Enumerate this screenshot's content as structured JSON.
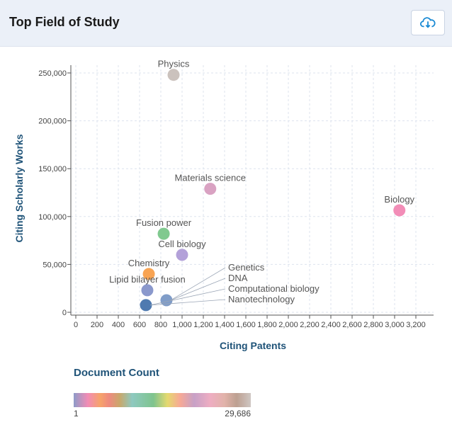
{
  "header": {
    "title": "Top Field of Study",
    "download_icon": "cloud-download-icon"
  },
  "chart_data": {
    "type": "scatter",
    "xlabel": "Citing Patents",
    "ylabel": "Citing Scholarly Works",
    "xlim": [
      -50,
      3350
    ],
    "ylim": [
      -5000,
      255000
    ],
    "xticks": [
      0,
      200,
      400,
      600,
      800,
      1000,
      1200,
      1400,
      1600,
      1800,
      2000,
      2200,
      2400,
      2600,
      2800,
      3000,
      3200
    ],
    "xtick_labels": [
      "0",
      "200",
      "400",
      "600",
      "800",
      "1,000",
      "1,200",
      "1,400",
      "1,600",
      "1,800",
      "2,000",
      "2,200",
      "2,400",
      "2,600",
      "2,800",
      "3,000",
      "3,200"
    ],
    "yticks": [
      0,
      50000,
      100000,
      150000,
      200000,
      250000
    ],
    "ytick_labels": [
      "0",
      "50,000",
      "100,000",
      "150,000",
      "200,000",
      "250,000"
    ],
    "grid": true,
    "points": [
      {
        "label": "Physics",
        "x": 920,
        "y": 248000,
        "color": "#cbc2bd"
      },
      {
        "label": "Materials science",
        "x": 1265,
        "y": 129000,
        "color": "#d9a2c2"
      },
      {
        "label": "Biology",
        "x": 3045,
        "y": 106500,
        "color": "#f28db7"
      },
      {
        "label": "Fusion power",
        "x": 827,
        "y": 82000,
        "color": "#80c98f"
      },
      {
        "label": "Cell biology",
        "x": 1000,
        "y": 60000,
        "color": "#b3a1d9"
      },
      {
        "label": "Chemistry",
        "x": 687,
        "y": 40000,
        "color": "#f8a453"
      },
      {
        "label": "Lipid bilayer fusion",
        "x": 673,
        "y": 23000,
        "color": "#8a98cc"
      },
      {
        "label": "Genetics",
        "x": 853,
        "y": 12600,
        "color": "#7f9cc8"
      },
      {
        "label": "DNA",
        "x": 853,
        "y": 12600,
        "color": "#7f9cc8"
      },
      {
        "label": "Computational biology",
        "x": 660,
        "y": 7500,
        "color": "#4f7ab0"
      },
      {
        "label": "Nanotechnology",
        "x": 660,
        "y": 7500,
        "color": "#4f7ab0"
      }
    ],
    "legend": {
      "title": "Document Count",
      "min_label": "1",
      "max_label": "29,686",
      "placement": "bottom-left"
    }
  }
}
